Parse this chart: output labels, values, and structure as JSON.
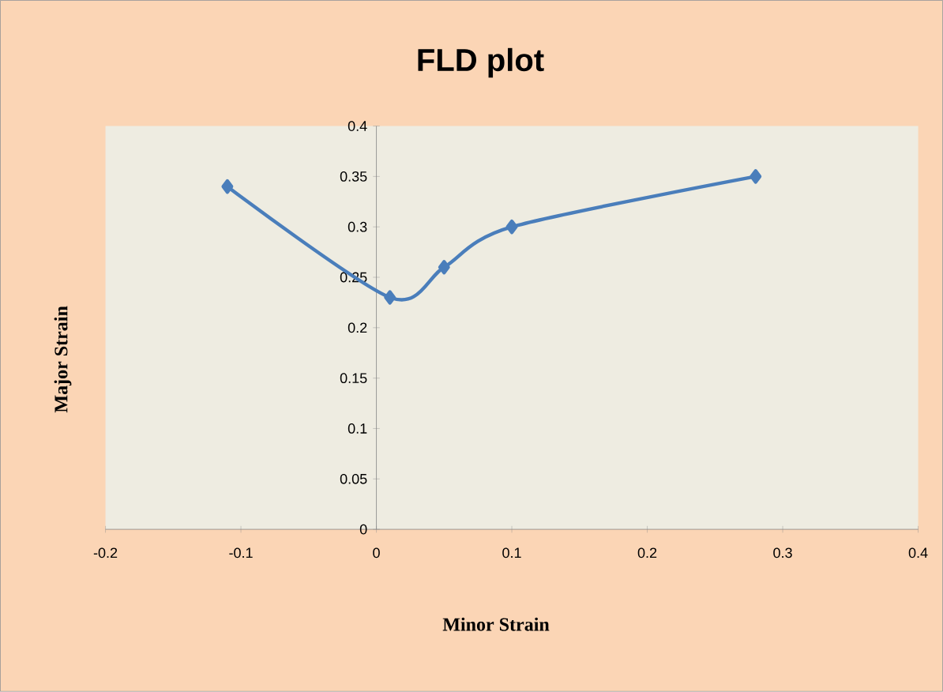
{
  "chart_data": {
    "type": "line",
    "title": "FLD plot",
    "xlabel": "Minor Strain",
    "ylabel": "Major Strain",
    "x": [
      -0.11,
      0.01,
      0.05,
      0.1,
      0.28
    ],
    "series": [
      {
        "color": "#4a7ebb",
        "values": [
          0.34,
          0.23,
          0.26,
          0.3,
          0.35
        ]
      }
    ],
    "xlim": [
      -0.2,
      0.4
    ],
    "ylim": [
      0,
      0.4
    ],
    "xticks": [
      -0.2,
      -0.1,
      0,
      0.1,
      0.2,
      0.3,
      0.4
    ],
    "yticks": [
      0,
      0.05,
      0.1,
      0.15,
      0.2,
      0.25,
      0.3,
      0.35,
      0.4
    ],
    "marker": "diamond",
    "line_style": "solid"
  }
}
